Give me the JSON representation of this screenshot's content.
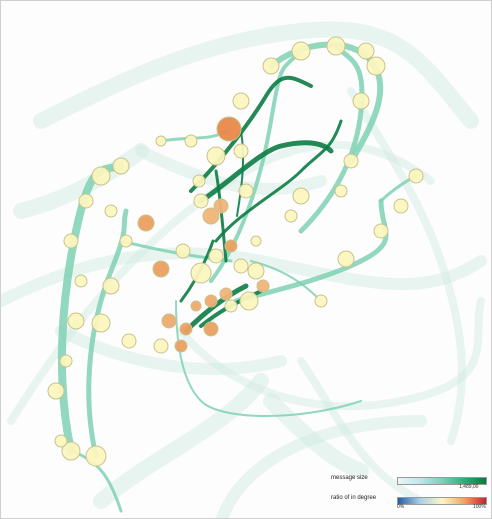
{
  "legend": {
    "message_size": {
      "title": "message size",
      "min_label": "",
      "max_label": "1,489,00",
      "colors": [
        "#e8f6f8",
        "#bfe6ec",
        "#7cd0b9",
        "#2fae78",
        "#0a7a3c"
      ]
    },
    "ratio_in_degree": {
      "title": "ratio of in degree",
      "min_label": "0%",
      "max_label": "100%",
      "colors": [
        "#1f5fa8",
        "#a6d0e6",
        "#fff6c4",
        "#f2a65a",
        "#c8202e"
      ]
    }
  },
  "colors": {
    "node_fill_low": "#fbf6bf",
    "node_fill_high": "#e8894a",
    "node_stroke": "#c8c38c",
    "edge_light": "#7ed1b3",
    "edge_dark": "#0c7c45",
    "background_edge": "#cfe9e0"
  }
}
